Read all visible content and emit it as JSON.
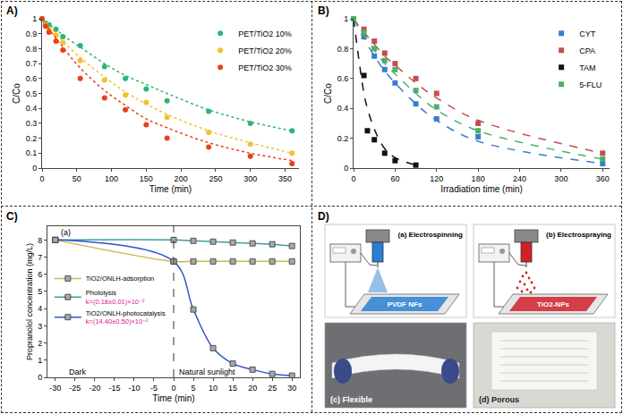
{
  "chart_data": [
    {
      "panel": "A)",
      "type": "scatter",
      "x_label": "Time (min)",
      "y_label": "C/Co",
      "xlim": [
        0,
        370
      ],
      "xticks": [
        0,
        50,
        100,
        150,
        200,
        250,
        300,
        350
      ],
      "ylim": [
        0,
        1
      ],
      "yticks": [
        0,
        0.1,
        0.2,
        0.3,
        0.4,
        0.5,
        0.6,
        0.7,
        0.8,
        0.9,
        1
      ],
      "grid": false,
      "legend": "upper right",
      "marker": "circle",
      "line_style": "dot",
      "x": [
        0,
        5,
        10,
        20,
        30,
        55,
        90,
        120,
        150,
        180,
        240,
        300,
        360
      ],
      "series": [
        {
          "name": "PET/TiO2 10%",
          "color": "#2bb673",
          "values": [
            1,
            0.97,
            0.96,
            0.93,
            0.88,
            0.82,
            0.68,
            0.6,
            0.53,
            0.45,
            0.38,
            0.3,
            0.25
          ],
          "fit": [
            1,
            0.98,
            0.96,
            0.93,
            0.89,
            0.81,
            0.7,
            0.62,
            0.56,
            0.5,
            0.39,
            0.31,
            0.25
          ]
        },
        {
          "name": "PET/TiO2 20%",
          "color": "#f4c02e",
          "values": [
            1,
            0.96,
            0.93,
            0.89,
            0.84,
            0.72,
            0.59,
            0.49,
            0.44,
            0.34,
            0.24,
            0.16,
            0.1
          ],
          "fit": [
            1,
            0.97,
            0.95,
            0.9,
            0.85,
            0.74,
            0.61,
            0.51,
            0.43,
            0.36,
            0.25,
            0.17,
            0.1
          ]
        },
        {
          "name": "PET/TiO2 30%",
          "color": "#e8401c",
          "values": [
            1,
            0.95,
            0.91,
            0.85,
            0.79,
            0.6,
            0.47,
            0.39,
            0.29,
            0.2,
            0.14,
            0.08,
            0.03
          ],
          "fit": [
            1,
            0.96,
            0.93,
            0.87,
            0.81,
            0.67,
            0.52,
            0.42,
            0.33,
            0.27,
            0.17,
            0.1,
            0.05
          ]
        }
      ]
    },
    {
      "panel": "B)",
      "type": "scatter",
      "x_label": "Irradiation time (min)",
      "y_label": "C/Co",
      "xlim": [
        0,
        370
      ],
      "xticks": [
        0,
        60,
        120,
        180,
        240,
        300,
        360
      ],
      "ylim": [
        0,
        1
      ],
      "yticks": [
        0,
        0.2,
        0.4,
        0.6,
        0.8,
        1
      ],
      "grid": false,
      "legend": "upper right",
      "marker": "square",
      "line_style": "dash",
      "series": [
        {
          "name": "CYT",
          "color": "#3a7dc9",
          "x": [
            0,
            15,
            30,
            45,
            60,
            90,
            120,
            180,
            360
          ],
          "values": [
            1,
            0.88,
            0.75,
            0.66,
            0.57,
            0.43,
            0.33,
            0.21,
            0.03
          ],
          "fit": [
            1,
            0.87,
            0.75,
            0.65,
            0.57,
            0.43,
            0.32,
            0.18,
            0.03
          ]
        },
        {
          "name": "CPA",
          "color": "#c0504d",
          "x": [
            0,
            15,
            30,
            45,
            60,
            90,
            120,
            180,
            360
          ],
          "values": [
            1,
            0.93,
            0.85,
            0.77,
            0.7,
            0.6,
            0.5,
            0.3,
            0.1
          ],
          "fit": [
            1,
            0.91,
            0.83,
            0.75,
            0.69,
            0.57,
            0.47,
            0.32,
            0.1
          ]
        },
        {
          "name": "TAM",
          "color": "#111111",
          "x": [
            0,
            15,
            20,
            30,
            45,
            60,
            90
          ],
          "values": [
            1,
            0.62,
            0.25,
            0.19,
            0.1,
            0.05,
            0.02
          ],
          "fit": [
            1,
            0.5,
            0.4,
            0.26,
            0.13,
            0.07,
            0.02
          ]
        },
        {
          "name": "5-FLU",
          "color": "#4caf6a",
          "x": [
            0,
            15,
            30,
            45,
            60,
            90,
            120,
            180,
            360
          ],
          "values": [
            1,
            0.91,
            0.8,
            0.72,
            0.66,
            0.52,
            0.41,
            0.25,
            0.06
          ],
          "fit": [
            1,
            0.89,
            0.79,
            0.7,
            0.63,
            0.5,
            0.39,
            0.25,
            0.06
          ]
        }
      ]
    },
    {
      "panel": "C)",
      "type": "line",
      "x_label": "Time (min)",
      "y_label": "Propranolol concentration (mg/L)",
      "xlim": [
        -32,
        32
      ],
      "xticks": [
        -30,
        -25,
        -20,
        -15,
        -10,
        -5,
        0,
        5,
        10,
        15,
        20,
        25,
        30
      ],
      "ylim": [
        0,
        8.8
      ],
      "yticks": [
        0,
        1,
        2,
        3,
        4,
        5,
        6,
        7,
        8
      ],
      "grid": false,
      "legend": "upper left",
      "marker": "square",
      "line_style": "solid",
      "vline": 0,
      "annotations": [
        {
          "text": "(a)",
          "x": -29,
          "y": 8.45
        },
        {
          "text": "Dark",
          "x": -27,
          "y": 0.32
        },
        {
          "text": "Natural sunlight",
          "x": 1,
          "y": 0.32
        }
      ],
      "x": [
        -30,
        0,
        5,
        10,
        15,
        20,
        25,
        30
      ],
      "series": [
        {
          "name": "TiO2/ONLH-adsorption",
          "color": "#c9b84a",
          "values": [
            8,
            6.75,
            6.75,
            6.75,
            6.75,
            6.75,
            6.75,
            6.75
          ]
        },
        {
          "name": "Photolysis",
          "color": "#3b9ea0",
          "k_label": "k=(0.18±0.01)×10⁻²",
          "values": [
            8,
            8,
            7.95,
            7.9,
            7.85,
            7.8,
            7.75,
            7.65
          ]
        },
        {
          "name": "TiO2/ONLH-photocatalysis",
          "color": "#3355cc",
          "k_label": "k=(14.40±0.50)×10⁻²",
          "values": [
            8,
            6.75,
            3.95,
            1.7,
            0.8,
            0.45,
            0.2,
            0.1
          ]
        }
      ]
    }
  ],
  "diagram": {
    "panel": "D)",
    "schematics": [
      {
        "label": "(a) Electrospinning",
        "deposit": "PVDF NFs",
        "color": "#2a7fd4"
      },
      {
        "label": "(b) Electrospraying",
        "deposit": "TiO2-NPs",
        "color": "#d0202a"
      }
    ],
    "photos": [
      {
        "label": "(c) Flexible"
      },
      {
        "label": "(d) Porous"
      }
    ]
  }
}
